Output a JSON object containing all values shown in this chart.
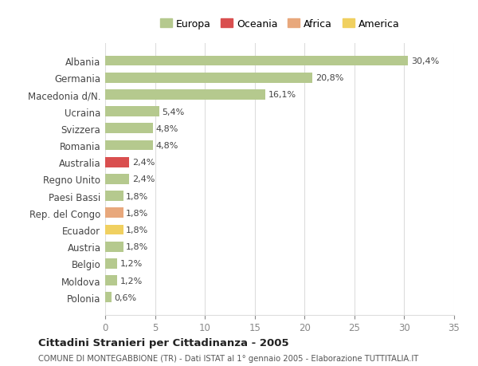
{
  "countries": [
    "Albania",
    "Germania",
    "Macedonia d/N.",
    "Ucraina",
    "Svizzera",
    "Romania",
    "Australia",
    "Regno Unito",
    "Paesi Bassi",
    "Rep. del Congo",
    "Ecuador",
    "Austria",
    "Belgio",
    "Moldova",
    "Polonia"
  ],
  "values": [
    30.4,
    20.8,
    16.1,
    5.4,
    4.8,
    4.8,
    2.4,
    2.4,
    1.8,
    1.8,
    1.8,
    1.8,
    1.2,
    1.2,
    0.6
  ],
  "labels": [
    "30,4%",
    "20,8%",
    "16,1%",
    "5,4%",
    "4,8%",
    "4,8%",
    "2,4%",
    "2,4%",
    "1,8%",
    "1,8%",
    "1,8%",
    "1,8%",
    "1,2%",
    "1,2%",
    "0,6%"
  ],
  "continents": [
    "Europa",
    "Europa",
    "Europa",
    "Europa",
    "Europa",
    "Europa",
    "Oceania",
    "Europa",
    "Europa",
    "Africa",
    "America",
    "Europa",
    "Europa",
    "Europa",
    "Europa"
  ],
  "continent_colors": {
    "Europa": "#b5c98e",
    "Oceania": "#d94f4f",
    "Africa": "#e8a87c",
    "America": "#f0d060"
  },
  "legend_order": [
    "Europa",
    "Oceania",
    "Africa",
    "America"
  ],
  "legend_colors": {
    "Europa": "#b5c98e",
    "Oceania": "#d94f4f",
    "Africa": "#e8a87c",
    "America": "#f0d060"
  },
  "xlim": [
    0,
    35
  ],
  "xticks": [
    0,
    5,
    10,
    15,
    20,
    25,
    30,
    35
  ],
  "title": "Cittadini Stranieri per Cittadinanza - 2005",
  "subtitle": "COMUNE DI MONTEGABBIONE (TR) - Dati ISTAT al 1° gennaio 2005 - Elaborazione TUTTITALIA.IT",
  "background_color": "#ffffff",
  "grid_color": "#dddddd",
  "bar_height": 0.6
}
